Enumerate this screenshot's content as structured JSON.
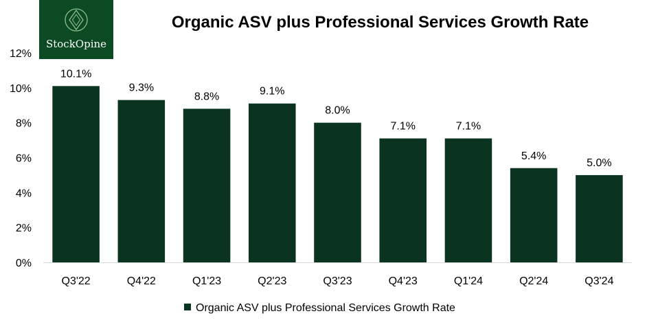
{
  "logo": {
    "text": "StockOpine",
    "icon": "diamond-in-circle-icon"
  },
  "chart_data": {
    "type": "bar",
    "title": "Organic ASV plus Professional Services Growth Rate",
    "categories": [
      "Q3'22",
      "Q4'22",
      "Q1'23",
      "Q2'23",
      "Q3'23",
      "Q4'23",
      "Q1'24",
      "Q2'24",
      "Q3'24"
    ],
    "series": [
      {
        "name": "Organic ASV plus Professional Services Growth Rate",
        "values": [
          10.1,
          9.3,
          8.8,
          9.1,
          8.0,
          7.1,
          7.1,
          5.4,
          5.0
        ],
        "labels": [
          "10.1%",
          "9.3%",
          "8.8%",
          "9.1%",
          "8.0%",
          "7.1%",
          "7.1%",
          "5.4%",
          "5.0%"
        ],
        "color": "#0a3420"
      }
    ],
    "yticks": [
      "0%",
      "2%",
      "4%",
      "6%",
      "8%",
      "10%",
      "12%"
    ],
    "ylim": [
      0,
      12
    ],
    "ystep": 2,
    "grid": false,
    "legend_position": "bottom",
    "xlabel": "",
    "ylabel": ""
  }
}
